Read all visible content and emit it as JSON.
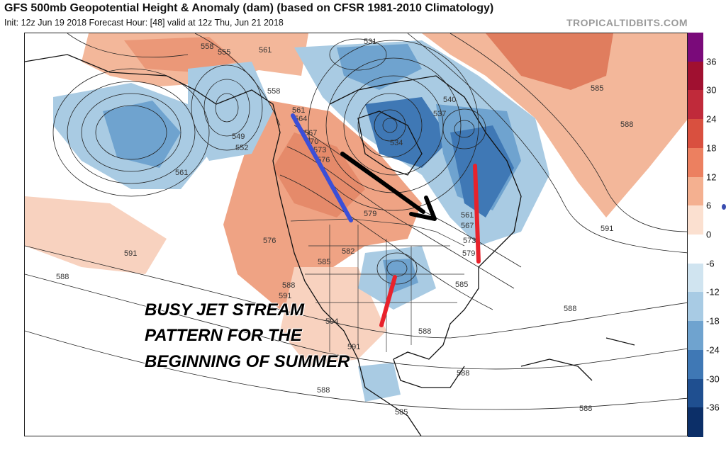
{
  "header": {
    "title": "GFS 500mb Geopotential Height & Anomaly (dam) (based on CFSR 1981-2010 Climatology)",
    "subtitle": "Init: 12z Jun 19 2018   Forecast Hour: [48]   valid at 12z Thu, Jun 21 2018",
    "site": "TROPICALTIDBITS.COM"
  },
  "annotation": {
    "lines": [
      "BUSY JET STREAM",
      "PATTERN FOR THE",
      "BEGINNING OF SUMMER"
    ]
  },
  "colorbar": {
    "ticks": [
      "36",
      "30",
      "24",
      "18",
      "12",
      "6",
      "0",
      "-6",
      "-12",
      "-18",
      "-24",
      "-30",
      "-36"
    ],
    "colors": [
      "#7a0a7a",
      "#a01030",
      "#c02a3a",
      "#d9503f",
      "#ec8060",
      "#f4b090",
      "#fbe0d0",
      "#ffffff",
      "#d0e4f0",
      "#a8cbe4",
      "#6fa3cf",
      "#3f78b5",
      "#1f4f90",
      "#0c2f68"
    ]
  },
  "contours": {
    "labels": [
      "558",
      "555",
      "561",
      "531",
      "537",
      "540",
      "585",
      "588",
      "549",
      "552",
      "561",
      "558",
      "561",
      "564",
      "567",
      "570",
      "573",
      "576",
      "579",
      "534",
      "561",
      "567",
      "573",
      "579",
      "591",
      "576",
      "582",
      "585",
      "588",
      "591",
      "594",
      "591",
      "588",
      "585",
      "588",
      "588",
      "588",
      "588",
      "585",
      "588",
      "591"
    ]
  },
  "overlays": {
    "line_colors": {
      "blue": "#3b4fd8",
      "red": "#e8222c",
      "black": "#000000"
    }
  }
}
